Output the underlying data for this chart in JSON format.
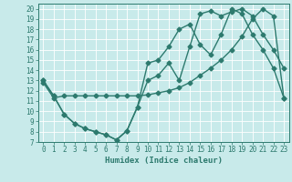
{
  "xlabel": "Humidex (Indice chaleur)",
  "bg_color": "#c8eaea",
  "line_color": "#2d7a6e",
  "grid_color": "#ffffff",
  "xlim": [
    -0.5,
    23.5
  ],
  "ylim": [
    7,
    20.5
  ],
  "xticks": [
    0,
    1,
    2,
    3,
    4,
    5,
    6,
    7,
    8,
    9,
    10,
    11,
    12,
    13,
    14,
    15,
    16,
    17,
    18,
    19,
    20,
    21,
    22,
    23
  ],
  "yticks": [
    7,
    8,
    9,
    10,
    11,
    12,
    13,
    14,
    15,
    16,
    17,
    18,
    19,
    20
  ],
  "line1_x": [
    0,
    1,
    2,
    3,
    4,
    5,
    6,
    7,
    8,
    9,
    10,
    11,
    12,
    13,
    14,
    15,
    16,
    17,
    18,
    19,
    20,
    21,
    22,
    23
  ],
  "line1_y": [
    13.0,
    11.5,
    9.7,
    8.8,
    8.3,
    8.0,
    7.7,
    7.2,
    8.1,
    10.4,
    13.0,
    13.5,
    14.7,
    13.0,
    16.3,
    19.5,
    19.8,
    19.3,
    19.7,
    20.0,
    19.3,
    17.5,
    16.0,
    14.2
  ],
  "line2_x": [
    0,
    1,
    2,
    3,
    4,
    5,
    6,
    7,
    8,
    9,
    10,
    11,
    12,
    13,
    14,
    15,
    16,
    17,
    18,
    19,
    20,
    21,
    22,
    23
  ],
  "line2_y": [
    13.0,
    11.5,
    9.7,
    8.8,
    8.3,
    8.0,
    7.7,
    7.2,
    8.1,
    10.4,
    14.7,
    15.0,
    16.3,
    18.0,
    18.5,
    16.5,
    15.5,
    17.5,
    20.0,
    19.5,
    17.5,
    16.0,
    14.2,
    11.3
  ],
  "line3_x": [
    0,
    1,
    2,
    3,
    4,
    5,
    6,
    7,
    8,
    9,
    10,
    11,
    12,
    13,
    14,
    15,
    16,
    17,
    18,
    19,
    20,
    21,
    22,
    23
  ],
  "line3_y": [
    12.8,
    11.3,
    11.5,
    11.5,
    11.5,
    11.5,
    11.5,
    11.5,
    11.5,
    11.5,
    11.6,
    11.8,
    12.0,
    12.3,
    12.8,
    13.5,
    14.2,
    15.0,
    16.0,
    17.3,
    19.0,
    20.0,
    19.3,
    11.3
  ]
}
